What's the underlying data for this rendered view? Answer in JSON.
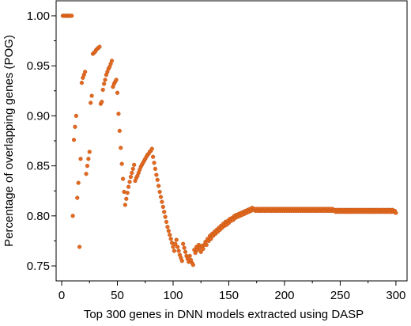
{
  "chart_data": {
    "type": "scatter",
    "title": "",
    "xlabel": "Top 300 genes in DNN models extracted using DASP",
    "ylabel": "Percentage of overlapping genes (POG)",
    "xlim": [
      -5,
      310
    ],
    "ylim": [
      0.735,
      1.015
    ],
    "xticks": [
      0,
      50,
      100,
      150,
      200,
      250,
      300
    ],
    "xtick_labels": [
      "0",
      "50",
      "100",
      "150",
      "200",
      "250",
      "300"
    ],
    "yticks": [
      0.75,
      0.8,
      0.85,
      0.9,
      0.95,
      1.0
    ],
    "ytick_labels": [
      "0.75",
      "0.80",
      "0.85",
      "0.90",
      "0.95",
      "1.00"
    ],
    "grid": false,
    "legend": "none",
    "marker_color": "#e2691f",
    "x": [
      1,
      2,
      3,
      4,
      5,
      6,
      7,
      8,
      9,
      10,
      11,
      12,
      13,
      14,
      15,
      16,
      17,
      18,
      19,
      20,
      21,
      22,
      23,
      24,
      25,
      26,
      27,
      28,
      29,
      30,
      31,
      32,
      33,
      34,
      35,
      36,
      37,
      38,
      39,
      40,
      41,
      42,
      43,
      44,
      45,
      46,
      47,
      48,
      49,
      50,
      51,
      52,
      53,
      54,
      55,
      56,
      57,
      58,
      59,
      60,
      61,
      62,
      63,
      64,
      65,
      66,
      67,
      68,
      69,
      70,
      71,
      72,
      73,
      74,
      75,
      76,
      77,
      78,
      79,
      80,
      81,
      82,
      83,
      84,
      85,
      86,
      87,
      88,
      89,
      90,
      91,
      92,
      93,
      94,
      95,
      96,
      97,
      98,
      99,
      100,
      101,
      102,
      103,
      104,
      105,
      106,
      107,
      108,
      109,
      110,
      111,
      112,
      113,
      114,
      115,
      116,
      117,
      118,
      119,
      120,
      121,
      122,
      123,
      124,
      125,
      126,
      127,
      128,
      129,
      130,
      131,
      132,
      133,
      134,
      135,
      136,
      137,
      138,
      139,
      140,
      141,
      142,
      143,
      144,
      145,
      146,
      147,
      148,
      149,
      150,
      151,
      152,
      153,
      154,
      155,
      156,
      157,
      158,
      159,
      160,
      161,
      162,
      163,
      164,
      165,
      166,
      167,
      168,
      169,
      170,
      171,
      172,
      173,
      174,
      175,
      176,
      177,
      178,
      179,
      180,
      181,
      182,
      183,
      184,
      185,
      186,
      187,
      188,
      189,
      190,
      191,
      192,
      193,
      194,
      195,
      196,
      197,
      198,
      199,
      200,
      201,
      202,
      203,
      204,
      205,
      206,
      207,
      208,
      209,
      210,
      211,
      212,
      213,
      214,
      215,
      216,
      217,
      218,
      219,
      220,
      221,
      222,
      223,
      224,
      225,
      226,
      227,
      228,
      229,
      230,
      231,
      232,
      233,
      234,
      235,
      236,
      237,
      238,
      239,
      240,
      241,
      242,
      243,
      244,
      245,
      246,
      247,
      248,
      249,
      250,
      251,
      252,
      253,
      254,
      255,
      256,
      257,
      258,
      259,
      260,
      261,
      262,
      263,
      264,
      265,
      266,
      267,
      268,
      269,
      270,
      271,
      272,
      273,
      274,
      275,
      276,
      277,
      278,
      279,
      280,
      281,
      282,
      283,
      284,
      285,
      286,
      287,
      288,
      289,
      290,
      291,
      292,
      293,
      294,
      295,
      296,
      297,
      298,
      299,
      300
    ],
    "y": [
      1,
      1,
      1,
      1,
      1,
      1,
      1,
      1,
      1,
      0.8,
      0.876,
      0.889,
      0.9,
      0.818,
      0.833,
      0.769,
      0.857,
      0.933,
      0.938,
      0.941,
      0.944,
      0.842,
      0.85,
      0.857,
      0.864,
      0.913,
      0.92,
      0.962,
      0.963,
      0.964,
      0.966,
      0.967,
      0.968,
      0.969,
      0.912,
      0.914,
      0.926,
      0.932,
      0.936,
      0.941,
      0.944,
      0.947,
      0.949,
      0.952,
      0.955,
      0.929,
      0.932,
      0.934,
      0.936,
      0.923,
      0.902,
      0.885,
      0.868,
      0.852,
      0.837,
      0.824,
      0.811,
      0.817,
      0.823,
      0.829,
      0.834,
      0.839,
      0.843,
      0.847,
      0.851,
      0.835,
      0.838,
      0.84,
      0.843,
      0.846,
      0.849,
      0.851,
      0.853,
      0.855,
      0.857,
      0.859,
      0.861,
      0.862,
      0.864,
      0.865,
      0.867,
      0.859,
      0.853,
      0.847,
      0.841,
      0.836,
      0.83,
      0.824,
      0.819,
      0.814,
      0.809,
      0.804,
      0.799,
      0.794,
      0.789,
      0.785,
      0.781,
      0.777,
      0.773,
      0.769,
      0.765,
      0.772,
      0.776,
      0.769,
      0.765,
      0.761,
      0.758,
      0.755,
      0.772,
      0.768,
      0.764,
      0.76,
      0.757,
      0.754,
      0.76,
      0.756,
      0.753,
      0.751,
      0.766,
      0.763,
      0.769,
      0.766,
      0.771,
      0.768,
      0.764,
      0.77,
      0.767,
      0.771,
      0.774,
      0.771,
      0.777,
      0.775,
      0.78,
      0.777,
      0.782,
      0.78,
      0.784,
      0.782,
      0.786,
      0.784,
      0.788,
      0.786,
      0.79,
      0.788,
      0.792,
      0.79,
      0.794,
      0.791,
      0.795,
      0.793,
      0.797,
      0.795,
      0.798,
      0.796,
      0.8,
      0.798,
      0.801,
      0.799,
      0.802,
      0.8,
      0.803,
      0.801,
      0.804,
      0.802,
      0.805,
      0.803,
      0.806,
      0.804,
      0.807,
      0.805,
      0.808,
      0.806,
      0.807,
      0.805,
      0.807,
      0.805,
      0.807,
      0.805,
      0.807,
      0.805,
      0.807,
      0.805,
      0.807,
      0.805,
      0.807,
      0.805,
      0.807,
      0.805,
      0.807,
      0.805,
      0.807,
      0.805,
      0.807,
      0.805,
      0.807,
      0.805,
      0.807,
      0.805,
      0.807,
      0.805,
      0.807,
      0.805,
      0.807,
      0.805,
      0.807,
      0.805,
      0.807,
      0.805,
      0.807,
      0.805,
      0.807,
      0.805,
      0.807,
      0.805,
      0.807,
      0.805,
      0.807,
      0.805,
      0.807,
      0.805,
      0.807,
      0.805,
      0.807,
      0.805,
      0.807,
      0.805,
      0.807,
      0.805,
      0.807,
      0.805,
      0.807,
      0.805,
      0.807,
      0.805,
      0.807,
      0.805,
      0.807,
      0.805,
      0.807,
      0.805,
      0.807,
      0.805,
      0.807,
      0.805,
      0.806,
      0.804,
      0.806,
      0.804,
      0.806,
      0.804,
      0.806,
      0.804,
      0.806,
      0.804,
      0.806,
      0.804,
      0.806,
      0.804,
      0.806,
      0.804,
      0.806,
      0.804,
      0.806,
      0.804,
      0.806,
      0.804,
      0.806,
      0.804,
      0.806,
      0.804,
      0.806,
      0.804,
      0.806,
      0.804,
      0.806,
      0.804,
      0.806,
      0.804,
      0.806,
      0.804,
      0.806,
      0.804,
      0.806,
      0.804,
      0.806,
      0.804,
      0.806,
      0.804,
      0.806,
      0.804,
      0.806,
      0.804,
      0.806,
      0.804,
      0.806,
      0.804,
      0.806,
      0.804,
      0.805,
      0.803
    ]
  }
}
